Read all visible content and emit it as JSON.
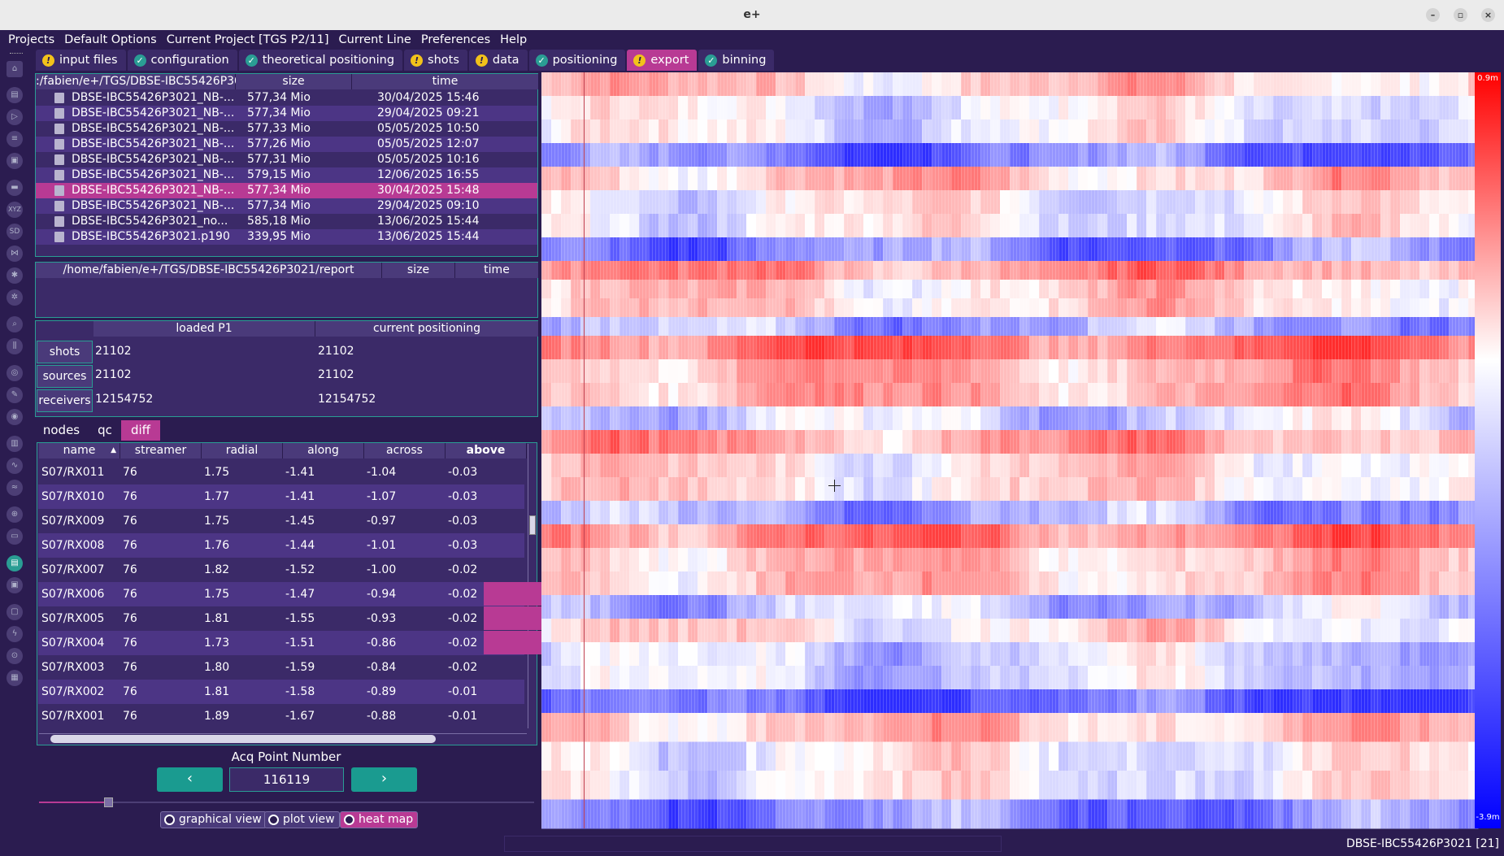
{
  "window": {
    "title": "e+"
  },
  "menu": [
    "Projects",
    "Default Options",
    "Current Project [TGS P2/11]",
    "Current Line",
    "Preferences",
    "Help"
  ],
  "tabs": [
    {
      "label": "input files",
      "status": "warn"
    },
    {
      "label": "configuration",
      "status": "ok"
    },
    {
      "label": "theoretical positioning",
      "status": "ok"
    },
    {
      "label": "shots",
      "status": "warn"
    },
    {
      "label": "data",
      "status": "warn"
    },
    {
      "label": "positioning",
      "status": "ok"
    },
    {
      "label": "export",
      "status": "warn"
    },
    {
      "label": "binning",
      "status": "ok"
    }
  ],
  "files": {
    "path": ":/fabien/e+/TGS/DBSE-IBC55426P30",
    "size_header": "size",
    "time_header": "time",
    "rows": [
      {
        "name": "DBSE-IBC55426P3021_NB-...",
        "size": "577,34 Mio",
        "time": "30/04/2025 15:46"
      },
      {
        "name": "DBSE-IBC55426P3021_NB-...",
        "size": "577,34 Mio",
        "time": "29/04/2025 09:21"
      },
      {
        "name": "DBSE-IBC55426P3021_NB-...",
        "size": "577,33 Mio",
        "time": "05/05/2025 10:50"
      },
      {
        "name": "DBSE-IBC55426P3021_NB-...",
        "size": "577,26 Mio",
        "time": "05/05/2025 12:07"
      },
      {
        "name": "DBSE-IBC55426P3021_NB-...",
        "size": "577,31 Mio",
        "time": "05/05/2025 10:16"
      },
      {
        "name": "DBSE-IBC55426P3021_NB-...",
        "size": "579,15 Mio",
        "time": "12/06/2025 16:55"
      },
      {
        "name": "DBSE-IBC55426P3021_NB-...",
        "size": "577,34 Mio",
        "time": "30/04/2025 15:48"
      },
      {
        "name": "DBSE-IBC55426P3021_NB-...",
        "size": "577,34 Mio",
        "time": "29/04/2025 09:10"
      },
      {
        "name": "DBSE-IBC55426P3021_no...",
        "size": "585,18 Mio",
        "time": "13/06/2025 15:44"
      },
      {
        "name": "DBSE-IBC55426P3021.p190",
        "size": "339,95 Mio",
        "time": "13/06/2025 15:44"
      }
    ]
  },
  "report": {
    "path": "/home/fabien/e+/TGS/DBSE-IBC55426P3021/report",
    "size_header": "size",
    "time_header": "time"
  },
  "stats": {
    "col1": "loaded P1",
    "col2": "current positioning",
    "rows": [
      {
        "label": "shots",
        "loaded": "21102",
        "current": "21102"
      },
      {
        "label": "sources",
        "loaded": "21102",
        "current": "21102"
      },
      {
        "label": "receivers",
        "loaded": "12154752",
        "current": "12154752"
      }
    ]
  },
  "subtabs": [
    "nodes",
    "qc",
    "diff"
  ],
  "diff_table": {
    "headers": [
      "name",
      "streamer",
      "radial",
      "along",
      "across",
      "above"
    ],
    "rows": [
      {
        "name": "S07/RX011",
        "streamer": "76",
        "radial": "1.75",
        "along": "-1.41",
        "across": "-1.04",
        "above": "-0.03"
      },
      {
        "name": "S07/RX010",
        "streamer": "76",
        "radial": "1.77",
        "along": "-1.41",
        "across": "-1.07",
        "above": "-0.03"
      },
      {
        "name": "S07/RX009",
        "streamer": "76",
        "radial": "1.75",
        "along": "-1.45",
        "across": "-0.97",
        "above": "-0.03"
      },
      {
        "name": "S07/RX008",
        "streamer": "76",
        "radial": "1.76",
        "along": "-1.44",
        "across": "-1.01",
        "above": "-0.03"
      },
      {
        "name": "S07/RX007",
        "streamer": "76",
        "radial": "1.82",
        "along": "-1.52",
        "across": "-1.00",
        "above": "-0.02"
      },
      {
        "name": "S07/RX006",
        "streamer": "76",
        "radial": "1.75",
        "along": "-1.47",
        "across": "-0.94",
        "above": "-0.02"
      },
      {
        "name": "S07/RX005",
        "streamer": "76",
        "radial": "1.81",
        "along": "-1.55",
        "across": "-0.93",
        "above": "-0.02"
      },
      {
        "name": "S07/RX004",
        "streamer": "76",
        "radial": "1.73",
        "along": "-1.51",
        "across": "-0.86",
        "above": "-0.02"
      },
      {
        "name": "S07/RX003",
        "streamer": "76",
        "radial": "1.80",
        "along": "-1.59",
        "across": "-0.84",
        "above": "-0.02"
      },
      {
        "name": "S07/RX002",
        "streamer": "76",
        "radial": "1.81",
        "along": "-1.58",
        "across": "-0.89",
        "above": "-0.01"
      },
      {
        "name": "S07/RX001",
        "streamer": "76",
        "radial": "1.89",
        "along": "-1.67",
        "across": "-0.88",
        "above": "-0.01"
      }
    ]
  },
  "acq": {
    "label": "Acq Point Number",
    "value": "116119",
    "prev": "‹",
    "next": "›"
  },
  "views": [
    "graphical view",
    "plot view",
    "heat map"
  ],
  "heatmap": {
    "max_label": "0.9m",
    "min_label": "-3.9m",
    "positive_color": "#e8262b",
    "negative_color": "#2d3be0"
  },
  "status": {
    "text": "DBSE-IBC55426P3021 [21]"
  },
  "colors": {
    "background": "#2b1c50",
    "panel": "#3b2a68",
    "accent": "#b83a94",
    "teal": "#2a9d94"
  }
}
